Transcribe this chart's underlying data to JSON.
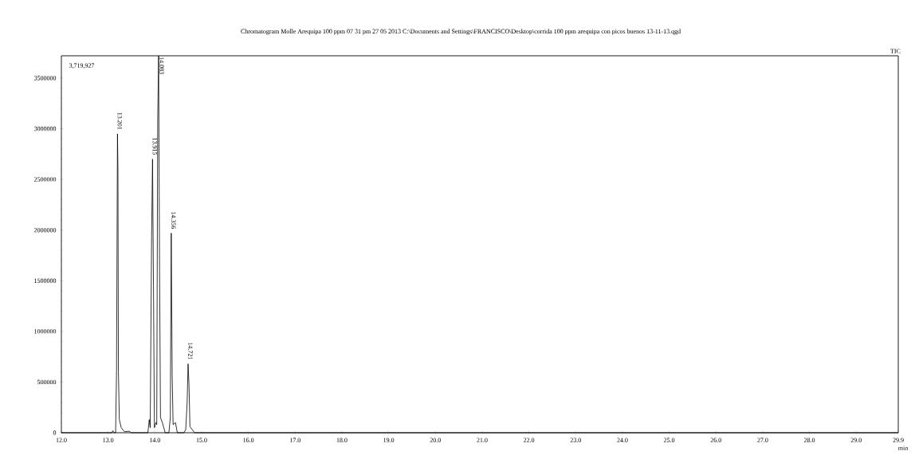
{
  "chart_data": {
    "type": "line",
    "title": "Chromatogram Molle Arequipa 100 ppm 07 31 pm 27 05 2013 C:\\Documents and Settings\\FRANCISCO\\Desktop\\corrida 100 ppm arequipa con picos buenos 13-11-13.qgd",
    "xlabel": "min",
    "x": [
      12.0,
      13.08,
      13.1,
      13.13,
      13.16,
      13.18,
      13.2,
      13.21,
      13.22,
      13.24,
      13.28,
      13.35,
      13.45,
      13.5,
      13.85,
      13.88,
      13.9,
      13.93,
      13.95,
      13.97,
      13.99,
      14.02,
      14.04,
      14.06,
      14.08,
      14.1,
      14.12,
      14.16,
      14.22,
      14.3,
      14.33,
      14.35,
      14.37,
      14.39,
      14.44,
      14.48,
      14.62,
      14.66,
      14.69,
      14.71,
      14.73,
      14.75,
      14.8,
      14.85,
      29.9
    ],
    "values": [
      0,
      0,
      20000,
      0,
      0,
      620000,
      2950000,
      2600000,
      600000,
      130000,
      50000,
      10000,
      15000,
      0,
      0,
      130000,
      50000,
      1940000,
      2700000,
      1450000,
      50000,
      100000,
      80000,
      3060000,
      3719927,
      1600000,
      150000,
      100000,
      0,
      0,
      150000,
      1970000,
      560000,
      80000,
      100000,
      0,
      0,
      30000,
      300000,
      680000,
      470000,
      60000,
      30000,
      0,
      0
    ],
    "color": "#000000",
    "marker": "none",
    "line_style": "solid",
    "grid": false,
    "xlim": [
      12.0,
      29.9
    ],
    "ylim": [
      0,
      3719927
    ],
    "xticks": [
      {
        "value": 12,
        "label": "12.0"
      },
      {
        "value": 13,
        "label": "13.0"
      },
      {
        "value": 14,
        "label": "14.0"
      },
      {
        "value": 15,
        "label": "15.0"
      },
      {
        "value": 16,
        "label": "16.0"
      },
      {
        "value": 17,
        "label": "17.0"
      },
      {
        "value": 18,
        "label": "18.0"
      },
      {
        "value": 19,
        "label": "19.0"
      },
      {
        "value": 20,
        "label": "20.0"
      },
      {
        "value": 21,
        "label": "21.0"
      },
      {
        "value": 22,
        "label": "22.0"
      },
      {
        "value": 23,
        "label": "23.0"
      },
      {
        "value": 24,
        "label": "24.0"
      },
      {
        "value": 25,
        "label": "25.0"
      },
      {
        "value": 26,
        "label": "26.0"
      },
      {
        "value": 27,
        "label": "27.0"
      },
      {
        "value": 28,
        "label": "28.0"
      },
      {
        "value": 29,
        "label": "29.0"
      },
      {
        "value": 29.9,
        "label": "29.9"
      }
    ],
    "yticks": [
      0,
      500000,
      1000000,
      1500000,
      2000000,
      2500000,
      3000000,
      3500000
    ],
    "annotations": [
      "3,719,927",
      "TIC",
      {
        "text": "13.201",
        "x": 13.2,
        "y": 2950000
      },
      {
        "text": "13.915",
        "x": 13.95,
        "y": 2700000
      },
      {
        "text": "14.083",
        "x": 14.08,
        "y": 3719927
      },
      {
        "text": "14.356",
        "x": 14.35,
        "y": 1970000
      },
      {
        "text": "14.721",
        "x": 14.71,
        "y": 680000
      }
    ]
  }
}
